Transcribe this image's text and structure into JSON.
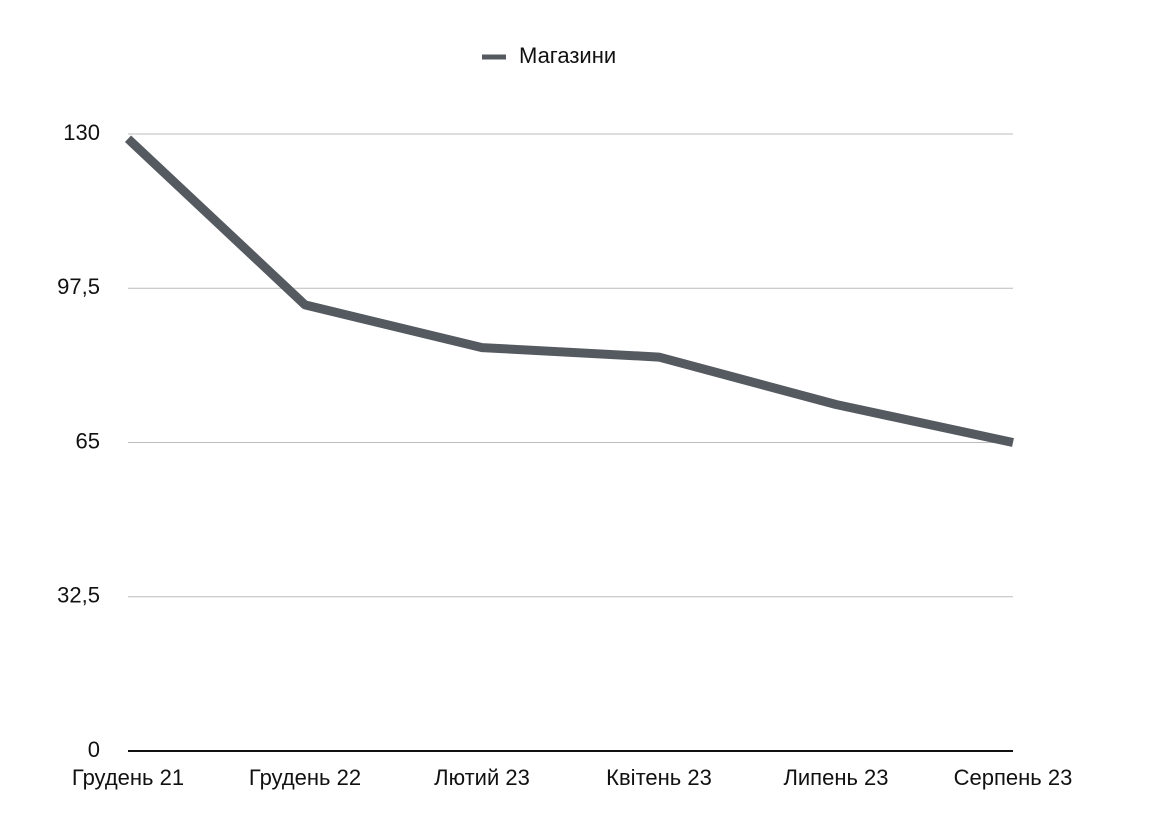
{
  "chart_data": {
    "type": "line",
    "categories": [
      "Грудень 21",
      "Грудень 22",
      "Лютий 23",
      "Квітень 23",
      "Липень 23",
      "Серпень 23"
    ],
    "series": [
      {
        "name": "Магазини",
        "color": "#555a60",
        "values": [
          129,
          94,
          85,
          83,
          73,
          65
        ]
      }
    ],
    "ylim": [
      0,
      130
    ],
    "yticks": [
      0,
      {
        "value": 32.5,
        "label": "32,5"
      },
      65,
      {
        "value": 97.5,
        "label": "97,5"
      },
      130
    ],
    "grid": true,
    "legend": "top"
  }
}
